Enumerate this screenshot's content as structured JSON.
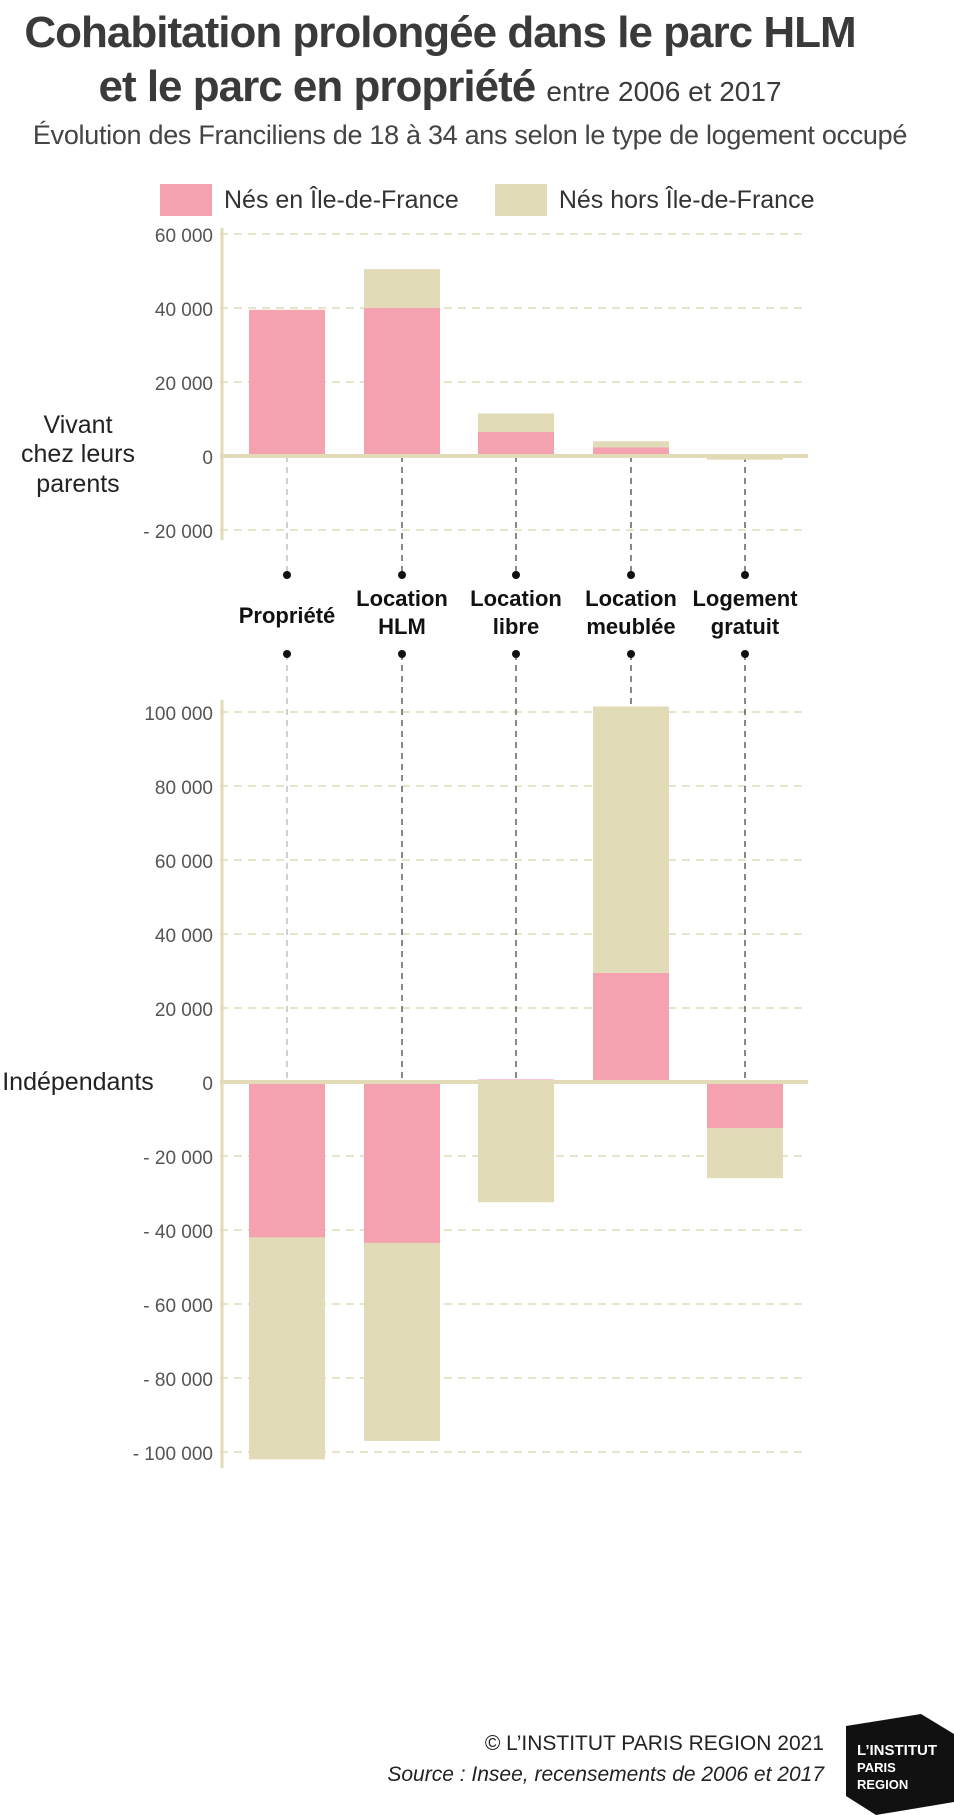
{
  "header": {
    "title_line1": "Cohabitation prolongée dans le parc HLM",
    "title_line2_main": "et le parc en propriété",
    "title_line2_small": "entre 2006 et 2017",
    "subtitle": "Évolution des Franciliens de 18 à 34 ans selon le type de logement occupé"
  },
  "legend": [
    {
      "label": "Nés en Île-de-France",
      "color": "#f4a1b0"
    },
    {
      "label": "Nés hors Île-de-France",
      "color": "#e1dbb7"
    }
  ],
  "footer": {
    "copyright": "© L’INSTITUT PARIS REGION 2021",
    "source": "Source : Insee, recensements de 2006 et 2017"
  },
  "logo": {
    "line1": "L’INSTITUT",
    "line2": "PARIS",
    "line3": "REGION"
  },
  "colors": {
    "axis": "#e1dbb7",
    "grid": "#e1dbb7",
    "dash_dark": "#555555",
    "dash_light": "#bbbbbb",
    "text": "#333333"
  },
  "chart_data": [
    {
      "type": "bar",
      "stacked": true,
      "panel_label": [
        "Vivant",
        "chez leurs",
        "parents"
      ],
      "categories": [
        "Propriété",
        "Location HLM",
        "Location libre",
        "Location meublée",
        "Logement gratuit"
      ],
      "series": [
        {
          "name": "Nés en Île-de-France",
          "values": [
            39500,
            40000,
            6500,
            2300,
            0
          ]
        },
        {
          "name": "Nés hors Île-de-France",
          "values": [
            -500,
            10500,
            5000,
            1700,
            -1000
          ]
        }
      ],
      "ylim": [
        -20000,
        60000
      ],
      "yticks": [
        60000,
        40000,
        20000,
        0,
        -20000
      ],
      "ytick_labels": [
        "60 000",
        "40 000",
        "20 000",
        "0",
        "- 20 000"
      ],
      "grid": true
    },
    {
      "type": "bar",
      "stacked": true,
      "panel_label": [
        "Indépendants"
      ],
      "categories": [
        "Propriété",
        "Location HLM",
        "Location libre",
        "Location meublée",
        "Logement gratuit"
      ],
      "series": [
        {
          "name": "Nés en Île-de-France",
          "values": [
            -42000,
            -43500,
            700,
            29500,
            -12500
          ]
        },
        {
          "name": "Nés hors Île-de-France",
          "values": [
            -60000,
            -53500,
            -32500,
            72000,
            -13500
          ]
        }
      ],
      "ylim": [
        -100000,
        100000
      ],
      "yticks": [
        100000,
        80000,
        60000,
        40000,
        20000,
        0,
        -20000,
        -40000,
        -60000,
        -80000,
        -100000
      ],
      "ytick_labels": [
        "100 000",
        "80 000",
        "60 000",
        "40 000",
        "20 000",
        "0",
        "- 20 000",
        "- 40 000",
        "- 60 000",
        "- 80 000",
        "- 100 000"
      ],
      "grid": true
    }
  ],
  "category_labels": [
    [
      "Propriété"
    ],
    [
      "Location",
      "HLM"
    ],
    [
      "Location",
      "libre"
    ],
    [
      "Location",
      "meublée"
    ],
    [
      "Logement",
      "gratuit"
    ]
  ]
}
